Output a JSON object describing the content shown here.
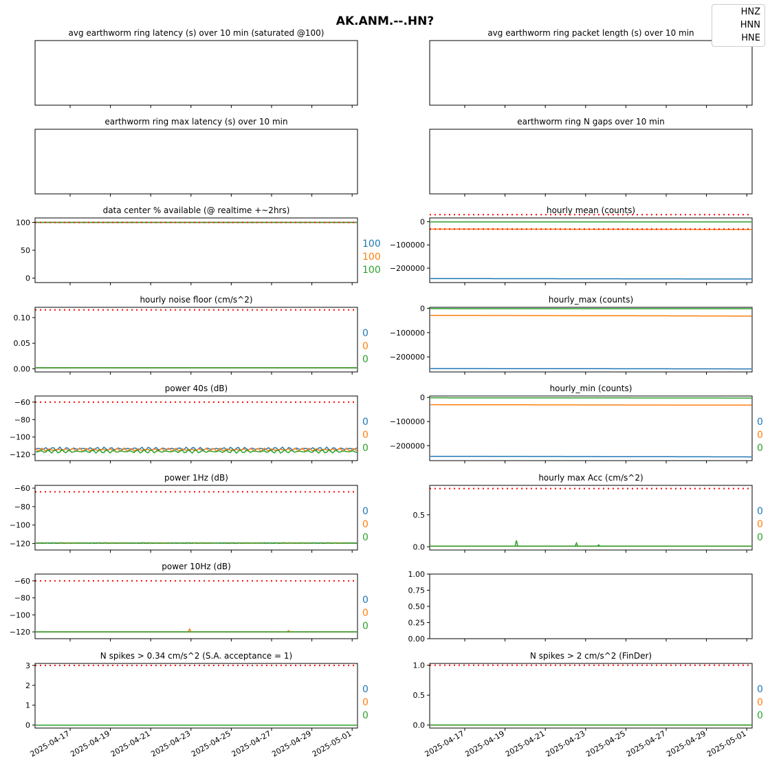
{
  "title": "AK.ANM.--.HN?",
  "legend": {
    "placement": "top-right",
    "entries": [
      "HNZ",
      "HNN",
      "HNE"
    ]
  },
  "series_names": [
    "HNZ",
    "HNN",
    "HNE"
  ],
  "colors": {
    "HNZ": "#1f77b4",
    "HNN": "#ff7f0e",
    "HNE": "#2ca02c",
    "threshold": "#ff0000"
  },
  "x_tick_labels": [
    "2025-04-17",
    "2025-04-19",
    "2025-04-21",
    "2025-04-23",
    "2025-04-25",
    "2025-04-27",
    "2025-04-29",
    "2025-05-01"
  ],
  "chart_data": [
    {
      "id": "p1",
      "type": "line",
      "title": "avg earthworm ring latency (s)   over 10 min (saturated @100)",
      "y_ticks": [],
      "series": [],
      "thresholds": [],
      "side_values": []
    },
    {
      "id": "p2",
      "type": "line",
      "title": "avg earthworm ring packet length (s)   over 10 min",
      "y_ticks": [],
      "series": [],
      "thresholds": [],
      "side_values": []
    },
    {
      "id": "p3",
      "type": "line",
      "title": "earthworm ring max latency (s)   over 10 min",
      "y_ticks": [],
      "series": [],
      "thresholds": [],
      "side_values": []
    },
    {
      "id": "p4",
      "type": "line",
      "title": "earthworm ring N gaps   over 10 min",
      "y_ticks": [],
      "series": [],
      "thresholds": [],
      "side_values": []
    },
    {
      "id": "p5",
      "type": "line",
      "title": "data center % available (@ realtime +~2hrs)",
      "ylim": [
        -8,
        108
      ],
      "y_ticks": [
        "100",
        "50",
        "0"
      ],
      "y_tick_values": [
        100,
        50,
        0
      ],
      "series": [
        {
          "values": [
            100,
            100
          ]
        },
        {
          "values": [
            100,
            100
          ]
        },
        {
          "values": [
            100,
            100
          ]
        }
      ],
      "thresholds": [
        100
      ],
      "side_values": [
        "100",
        "100",
        "100"
      ]
    },
    {
      "id": "p6",
      "type": "line",
      "title": "hourly mean (counts)",
      "ylim": [
        -262000,
        16000
      ],
      "y_ticks": [
        "0",
        "−100000",
        "−200000"
      ],
      "y_tick_values": [
        0,
        -100000,
        -200000
      ],
      "series": [
        {
          "values": [
            -245000,
            -246500
          ]
        },
        {
          "values": [
            -32000,
            -33500
          ]
        },
        {
          "values": [
            -1000,
            -1200
          ]
        }
      ],
      "thresholds": [
        30000,
        -32000
      ],
      "side_values": []
    },
    {
      "id": "p7",
      "type": "line",
      "title": "hourly noise floor (cm/s^2)",
      "ylim": [
        -0.006,
        0.12
      ],
      "y_ticks": [
        "0.10",
        "0.05",
        "0.00"
      ],
      "y_tick_values": [
        0.1,
        0.05,
        0
      ],
      "series": [
        {
          "values": [
            0.002,
            0.002
          ]
        },
        {
          "values": [
            0.002,
            0.002
          ]
        },
        {
          "values": [
            0.002,
            0.002
          ]
        }
      ],
      "thresholds": [
        0.115
      ],
      "side_values": [
        "0",
        "0",
        "0"
      ]
    },
    {
      "id": "p8",
      "type": "line",
      "title": "hourly_max (counts)",
      "ylim": [
        -262000,
        4000
      ],
      "y_ticks": [
        "0",
        "−100000",
        "−200000"
      ],
      "y_tick_values": [
        0,
        -100000,
        -200000
      ],
      "series": [
        {
          "values": [
            -248000,
            -249500
          ]
        },
        {
          "values": [
            -29000,
            -32000
          ]
        },
        {
          "values": [
            -1500,
            -1800
          ]
        }
      ],
      "thresholds": [],
      "side_values": []
    },
    {
      "id": "p9",
      "type": "line",
      "title": "power 40s (dB)",
      "ylim": [
        -127,
        -53
      ],
      "y_ticks": [
        "−60",
        "−80",
        "−100",
        "−120"
      ],
      "y_tick_values": [
        -60,
        -80,
        -100,
        -120
      ],
      "series": [
        {
          "values": [
            -113.5,
            -113.5
          ],
          "noise": 2
        },
        {
          "values": [
            -114.5,
            -114.5
          ],
          "noise": 2
        },
        {
          "values": [
            -116.5,
            -116.5
          ],
          "noise": 2
        }
      ],
      "thresholds": [
        -60
      ],
      "side_values": [
        "0",
        "0",
        "0"
      ]
    },
    {
      "id": "p10",
      "type": "line",
      "title": "hourly_min (counts)",
      "ylim": [
        -262000,
        6000
      ],
      "y_ticks": [
        "0",
        "−100000",
        "−200000"
      ],
      "y_tick_values": [
        0,
        -100000,
        -200000
      ],
      "series": [
        {
          "values": [
            -244000,
            -246500
          ]
        },
        {
          "values": [
            -30000,
            -32000
          ]
        },
        {
          "values": [
            -1500,
            -2500
          ]
        }
      ],
      "thresholds": [],
      "side_values": [
        "0",
        "0",
        "0"
      ]
    },
    {
      "id": "p11",
      "type": "line",
      "title": "power 1Hz (dB)",
      "ylim": [
        -127,
        -57
      ],
      "y_ticks": [
        "−60",
        "−80",
        "−100",
        "−120"
      ],
      "y_tick_values": [
        -60,
        -80,
        -100,
        -120
      ],
      "series": [
        {
          "values": [
            -119.5,
            -119.5
          ],
          "noise": 0.4
        },
        {
          "values": [
            -119.5,
            -119.5
          ],
          "noise": 0.4
        },
        {
          "values": [
            -119.5,
            -119.5
          ],
          "noise": 0.4
        }
      ],
      "thresholds": [
        -64
      ],
      "side_values": [
        "0",
        "0",
        "0"
      ]
    },
    {
      "id": "p12",
      "type": "line",
      "title": "hourly max Acc (cm/s^2)",
      "ylim": [
        -0.05,
        0.96
      ],
      "y_ticks": [
        "0.5",
        "0.0"
      ],
      "y_tick_values": [
        0.5,
        0
      ],
      "series": [
        {
          "values": [
            0.01,
            0.01
          ]
        },
        {
          "values": [
            0.01,
            0.01
          ]
        },
        {
          "values": [
            0.01,
            0.01
          ],
          "spikes": [
            [
              3.9,
              0.1
            ],
            [
              6.6,
              0.06
            ],
            [
              7.6,
              0.03
            ]
          ]
        }
      ],
      "thresholds": [
        0.91
      ],
      "side_values": [
        "0",
        "0",
        "0"
      ]
    },
    {
      "id": "p13",
      "type": "line",
      "title": "power 10Hz (dB)",
      "ylim": [
        -128,
        -52
      ],
      "y_ticks": [
        "−60",
        "−80",
        "−100",
        "−120"
      ],
      "y_tick_values": [
        -60,
        -80,
        -100,
        -120
      ],
      "series": [
        {
          "values": [
            -120,
            -120
          ]
        },
        {
          "values": [
            -120,
            -120
          ],
          "spikes": [
            [
              6.95,
              -116.5
            ],
            [
              11.4,
              -118.5
            ]
          ]
        },
        {
          "values": [
            -120,
            -120
          ]
        }
      ],
      "thresholds": [
        -60
      ],
      "side_values": [
        "0",
        "0",
        "0"
      ]
    },
    {
      "id": "p14",
      "type": "line",
      "title": "",
      "ylim": [
        0,
        1
      ],
      "y_ticks": [
        "1.00",
        "0.75",
        "0.50",
        "0.25",
        "0.00"
      ],
      "y_tick_values": [
        1,
        0.75,
        0.5,
        0.25,
        0
      ],
      "series": [],
      "thresholds": [],
      "side_values": []
    },
    {
      "id": "p15",
      "type": "line",
      "title": "N spikes > 0.34 cm/s^2 (S.A. acceptance = 1)",
      "ylim": [
        -0.15,
        3.1
      ],
      "y_ticks": [
        "3",
        "2",
        "1",
        "0"
      ],
      "y_tick_values": [
        3,
        2,
        1,
        0
      ],
      "series": [
        {
          "values": [
            0,
            0
          ]
        },
        {
          "values": [
            0,
            0
          ]
        },
        {
          "values": [
            0,
            0
          ]
        }
      ],
      "thresholds": [
        3
      ],
      "side_values": [
        "0",
        "0",
        "0"
      ]
    },
    {
      "id": "p16",
      "type": "line",
      "title": "N spikes > 2 cm/s^2 (FinDer)",
      "ylim": [
        -0.05,
        1.03
      ],
      "y_ticks": [
        "1.0",
        "0.5",
        "0.0"
      ],
      "y_tick_values": [
        1,
        0.5,
        0
      ],
      "series": [
        {
          "values": [
            0,
            0
          ]
        },
        {
          "values": [
            0,
            0
          ]
        },
        {
          "values": [
            0,
            0
          ]
        }
      ],
      "thresholds": [
        1
      ],
      "side_values": [
        "0",
        "0",
        "0"
      ]
    }
  ]
}
